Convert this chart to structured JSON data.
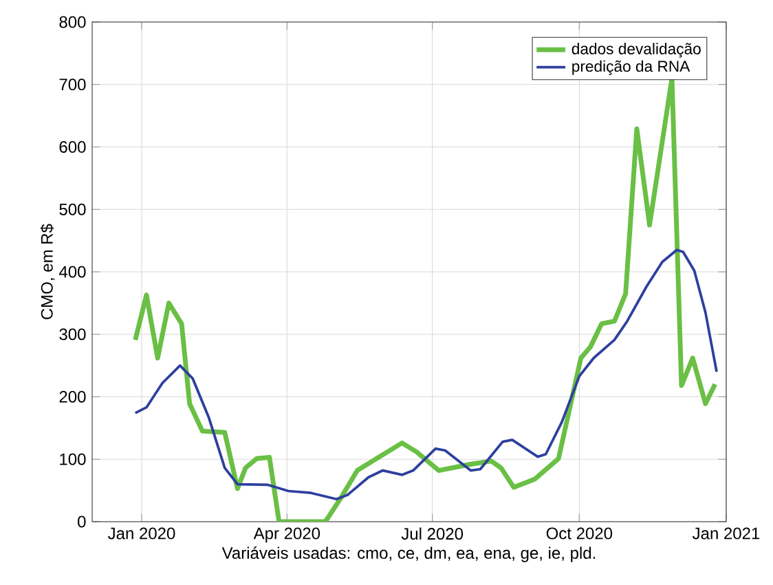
{
  "chart_data": {
    "type": "line",
    "xlabel": "Variáveis usadas: cmo, ce, dm, ea, ena, ge, ie, pld.",
    "ylabel": "CMO, em R$",
    "xlim": [
      "2019-12-01",
      "2021-01-01"
    ],
    "xticks": [
      {
        "value": "2020-01-01",
        "label": "Jan 2020"
      },
      {
        "value": "2020-04-01",
        "label": "Apr 2020"
      },
      {
        "value": "2020-07-01",
        "label": "Jul 2020"
      },
      {
        "value": "2020-10-01",
        "label": "Oct 2020"
      },
      {
        "value": "2021-01-01",
        "label": "Jan 2021"
      }
    ],
    "ylim": [
      0,
      800
    ],
    "yticks": [
      0,
      100,
      200,
      300,
      400,
      500,
      600,
      700,
      800
    ],
    "grid": true,
    "legend": "top right",
    "series": [
      {
        "name": "dados devalidação",
        "color": "#6abf45",
        "x": [
          "2019-12-28",
          "2020-01-04",
          "2020-01-11",
          "2020-01-18",
          "2020-01-26",
          "2020-01-31",
          "2020-02-08",
          "2020-02-22",
          "2020-03-01",
          "2020-03-06",
          "2020-03-13",
          "2020-03-21",
          "2020-03-27",
          "2020-04-25",
          "2020-05-04",
          "2020-05-15",
          "2020-06-12",
          "2020-06-21",
          "2020-07-05",
          "2020-07-25",
          "2020-08-07",
          "2020-08-13",
          "2020-08-21",
          "2020-09-03",
          "2020-09-18",
          "2020-10-02",
          "2020-10-08",
          "2020-10-15",
          "2020-10-23",
          "2020-10-30",
          "2020-11-06",
          "2020-11-14",
          "2020-11-28",
          "2020-12-04",
          "2020-12-11",
          "2020-12-19",
          "2020-12-25"
        ],
        "values": [
          291,
          363,
          262,
          350,
          317,
          189,
          145,
          143,
          53,
          86,
          101,
          103,
          0,
          0,
          35,
          82,
          126,
          112,
          82,
          92,
          97,
          86,
          55,
          68,
          101,
          262,
          280,
          317,
          321,
          365,
          629,
          475,
          710,
          218,
          262,
          189,
          220
        ]
      },
      {
        "name": "predição da RNA",
        "color": "#2e3f9e",
        "x": [
          "2019-12-28",
          "2020-01-04",
          "2020-01-14",
          "2020-01-25",
          "2020-02-02",
          "2020-02-12",
          "2020-02-22",
          "2020-03-01",
          "2020-03-20",
          "2020-04-02",
          "2020-04-16",
          "2020-05-02",
          "2020-05-09",
          "2020-05-22",
          "2020-05-31",
          "2020-06-12",
          "2020-06-19",
          "2020-07-03",
          "2020-07-09",
          "2020-07-25",
          "2020-07-31",
          "2020-08-14",
          "2020-08-20",
          "2020-09-05",
          "2020-09-10",
          "2020-09-20",
          "2020-10-01",
          "2020-10-10",
          "2020-10-23",
          "2020-10-31",
          "2020-11-12",
          "2020-11-22",
          "2020-12-01",
          "2020-12-05",
          "2020-12-12",
          "2020-12-19",
          "2020-12-26"
        ],
        "values": [
          174,
          183,
          222,
          250,
          229,
          167,
          86,
          60,
          59,
          49,
          46,
          36,
          43,
          71,
          82,
          75,
          82,
          117,
          114,
          82,
          84,
          128,
          131,
          104,
          108,
          159,
          233,
          262,
          291,
          321,
          376,
          416,
          435,
          432,
          402,
          335,
          240
        ]
      }
    ]
  }
}
